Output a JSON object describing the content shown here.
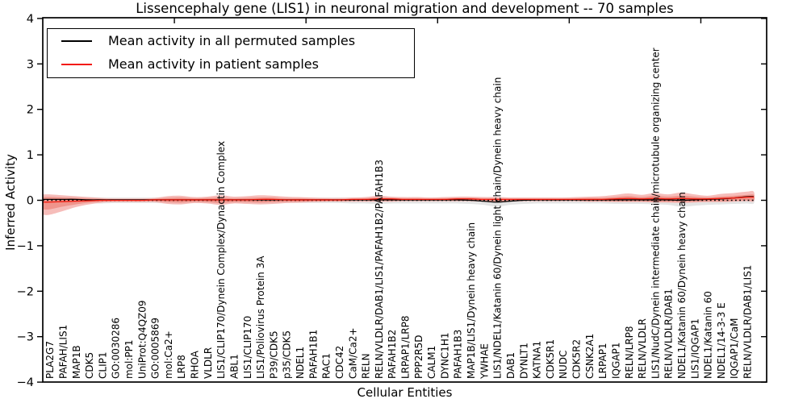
{
  "colors": {
    "black_line": "#000000",
    "red_line": "#f21a0e",
    "gray_band": "#e4e4e4",
    "red_band_outer": "#f5b2ae",
    "red_band_inner": "#ee8d84",
    "spine": "#000000"
  },
  "legend": {
    "items": [
      {
        "label": "Mean activity in all permuted samples",
        "color": "#000000"
      },
      {
        "label": "Mean activity in patient samples",
        "color": "#f21a0e"
      }
    ]
  },
  "chart_data": {
    "type": "line",
    "title": "Lissencephaly gene (LIS1) in neuronal migration and development -- 70 samples",
    "xlabel": "Cellular Entities",
    "ylabel": "Inferred Activity",
    "ylim": [
      -4,
      4
    ],
    "yticks": [
      "4",
      "3",
      "2",
      "1",
      "0",
      "−1",
      "−2",
      "−3",
      "−4"
    ],
    "ytick_values": [
      4,
      3,
      2,
      1,
      0,
      -1,
      -2,
      -3,
      -4
    ],
    "xlim": [
      0,
      55
    ],
    "xticks_top_values": [
      10,
      20,
      30,
      40,
      50
    ],
    "grid": false,
    "legend_position": "upper left",
    "zero_line": {
      "style": "dotted",
      "color": "#000000",
      "y": 0
    },
    "categories": [
      "PLA2G7",
      "PAFAH/LIS1",
      "MAP1B",
      "CDK5",
      "CLIP1",
      "GO:0030286",
      "mol:PP1",
      "UniProt:Q4QZ09",
      "GO:0005869",
      "mol:Ca2+",
      "LRP8",
      "RHOA",
      "VLDLR",
      "LIS1/CLIP170/Dynein Complex/Dynactin Complex",
      "ABL1",
      "LIS1/CLIP170",
      "LIS1/Poliovirus Protein 3A",
      "P39/CDK5",
      "p35/CDK5",
      "NDEL1",
      "PAFAH1B1",
      "RAC1",
      "CDC42",
      "CaM/Ca2+",
      "RELN",
      "RELN/VLDLR/DAB1/LIS1/PAFAH1B2/PAFAH1B3",
      "PAFAH1B2",
      "LRPAP1/LRP8",
      "PPP2R5D",
      "CALM1",
      "DYNC1H1",
      "PAFAH1B3",
      "MAP1B/LIS1/Dynein heavy chain",
      "YWHAE",
      "LIS1/NDEL1/Katanin 60/Dynein light chain/Dynein heavy chain",
      "DAB1",
      "DYNLT1",
      "KATNA1",
      "CDK5R1",
      "NUDC",
      "CDK5R2",
      "CSNK2A1",
      "LRPAP1",
      "IQGAP1",
      "RELN/LRP8",
      "RELN/VLDLR",
      "LIS1/NudC/Dynein intermediate chain/microtubule organizing center",
      "RELN/VLDLR/DAB1",
      "NDEL1/Katanin 60/Dynein heavy chain",
      "LIS1/IQGAP1",
      "NDEL1/Katanin 60",
      "NDEL1/14-3-3 E",
      "IQGAP1/CaM",
      "RELN/VLDLR/DAB1/LIS1"
    ],
    "series": [
      {
        "name": "Mean activity in all permuted samples",
        "color": "#000000",
        "values": [
          0.02,
          0.02,
          0.02,
          0.01,
          0.01,
          0.01,
          0.01,
          0.01,
          0.01,
          0.01,
          0.01,
          0.01,
          0.01,
          0.01,
          0.01,
          0.01,
          0.01,
          0.01,
          0.01,
          0.01,
          0.01,
          0.01,
          0.01,
          0.01,
          0.01,
          0.01,
          0.01,
          0.01,
          0.01,
          0.01,
          0.01,
          0.01,
          0.0,
          -0.02,
          -0.04,
          -0.02,
          0.0,
          0.01,
          0.01,
          0.01,
          0.01,
          0.01,
          0.01,
          0.01,
          0.01,
          0.01,
          0.01,
          0.01,
          0.0,
          0.01,
          0.02,
          0.03,
          0.05,
          0.08
        ]
      },
      {
        "name": "Mean activity in patient samples",
        "color": "#f21a0e",
        "values": [
          -0.04,
          -0.03,
          -0.02,
          -0.01,
          0.0,
          0.0,
          0.0,
          0.0,
          0.01,
          0.01,
          0.01,
          0.01,
          0.01,
          0.01,
          0.01,
          0.01,
          0.02,
          0.02,
          0.01,
          0.01,
          0.01,
          0.01,
          0.01,
          0.02,
          0.02,
          0.03,
          0.03,
          0.02,
          0.02,
          0.02,
          0.02,
          0.03,
          0.03,
          0.02,
          0.02,
          0.02,
          0.02,
          0.02,
          0.02,
          0.02,
          0.02,
          0.02,
          0.02,
          0.03,
          0.04,
          0.03,
          0.04,
          0.03,
          0.04,
          0.03,
          0.03,
          0.04,
          0.05,
          0.07
        ]
      }
    ],
    "bands": [
      {
        "name": "permuted samples spread",
        "color": "#e4e4e4",
        "upper": [
          0.09,
          0.08,
          0.07,
          0.07,
          0.06,
          0.06,
          0.06,
          0.06,
          0.06,
          0.07,
          0.07,
          0.06,
          0.06,
          0.07,
          0.06,
          0.06,
          0.07,
          0.07,
          0.06,
          0.06,
          0.06,
          0.06,
          0.06,
          0.06,
          0.06,
          0.07,
          0.06,
          0.06,
          0.06,
          0.06,
          0.06,
          0.06,
          0.06,
          0.07,
          0.07,
          0.06,
          0.06,
          0.06,
          0.06,
          0.06,
          0.06,
          0.06,
          0.06,
          0.07,
          0.07,
          0.07,
          0.07,
          0.07,
          0.08,
          0.08,
          0.08,
          0.08,
          0.08,
          0.09
        ],
        "lower": [
          -0.1,
          -0.09,
          -0.08,
          -0.07,
          -0.07,
          -0.06,
          -0.06,
          -0.06,
          -0.06,
          -0.07,
          -0.07,
          -0.06,
          -0.06,
          -0.07,
          -0.06,
          -0.06,
          -0.07,
          -0.07,
          -0.06,
          -0.06,
          -0.06,
          -0.06,
          -0.06,
          -0.07,
          -0.07,
          -0.08,
          -0.07,
          -0.07,
          -0.07,
          -0.07,
          -0.07,
          -0.07,
          -0.08,
          -0.1,
          -0.14,
          -0.1,
          -0.08,
          -0.07,
          -0.07,
          -0.07,
          -0.07,
          -0.07,
          -0.07,
          -0.08,
          -0.08,
          -0.08,
          -0.09,
          -0.1,
          -0.14,
          -0.12,
          -0.1,
          -0.09,
          -0.08,
          -0.07
        ]
      },
      {
        "name": "patient samples spread (outer)",
        "color": "#f5b2ae",
        "upper": [
          0.13,
          0.11,
          0.09,
          0.07,
          0.05,
          0.04,
          0.04,
          0.04,
          0.05,
          0.09,
          0.1,
          0.07,
          0.08,
          0.11,
          0.08,
          0.09,
          0.11,
          0.1,
          0.08,
          0.07,
          0.06,
          0.05,
          0.05,
          0.06,
          0.07,
          0.1,
          0.08,
          0.07,
          0.07,
          0.06,
          0.07,
          0.08,
          0.08,
          0.07,
          0.07,
          0.06,
          0.06,
          0.06,
          0.06,
          0.06,
          0.07,
          0.08,
          0.09,
          0.12,
          0.15,
          0.12,
          0.16,
          0.13,
          0.17,
          0.13,
          0.1,
          0.14,
          0.16,
          0.19
        ],
        "lower": [
          -0.32,
          -0.24,
          -0.15,
          -0.09,
          -0.05,
          -0.04,
          -0.04,
          -0.04,
          -0.04,
          -0.08,
          -0.09,
          -0.06,
          -0.07,
          -0.1,
          -0.07,
          -0.08,
          -0.09,
          -0.08,
          -0.06,
          -0.05,
          -0.04,
          -0.03,
          -0.03,
          -0.03,
          -0.03,
          -0.03,
          -0.03,
          -0.02,
          -0.02,
          -0.02,
          -0.02,
          -0.02,
          -0.02,
          -0.03,
          -0.04,
          -0.03,
          -0.02,
          -0.02,
          -0.02,
          -0.02,
          -0.02,
          -0.03,
          -0.03,
          -0.04,
          -0.04,
          -0.04,
          -0.05,
          -0.05,
          -0.06,
          -0.05,
          -0.04,
          -0.04,
          -0.03,
          -0.02
        ]
      },
      {
        "name": "patient samples spread (inner)",
        "color": "#ee8d84",
        "upper": [
          0.07,
          0.06,
          0.05,
          0.04,
          0.03,
          0.02,
          0.02,
          0.02,
          0.03,
          0.05,
          0.06,
          0.04,
          0.05,
          0.06,
          0.04,
          0.05,
          0.06,
          0.06,
          0.04,
          0.04,
          0.03,
          0.03,
          0.02,
          0.03,
          0.04,
          0.06,
          0.05,
          0.04,
          0.04,
          0.03,
          0.04,
          0.05,
          0.05,
          0.04,
          0.04,
          0.03,
          0.03,
          0.03,
          0.03,
          0.03,
          0.04,
          0.05,
          0.05,
          0.07,
          0.09,
          0.07,
          0.1,
          0.08,
          0.1,
          0.08,
          0.06,
          0.08,
          0.1,
          0.12
        ],
        "lower": [
          -0.2,
          -0.14,
          -0.09,
          -0.05,
          -0.03,
          -0.02,
          -0.02,
          -0.02,
          -0.02,
          -0.04,
          -0.05,
          -0.03,
          -0.04,
          -0.06,
          -0.04,
          -0.04,
          -0.05,
          -0.04,
          -0.03,
          -0.03,
          -0.02,
          -0.02,
          -0.02,
          -0.01,
          -0.01,
          -0.01,
          -0.01,
          -0.01,
          -0.01,
          -0.01,
          -0.01,
          -0.01,
          -0.01,
          -0.02,
          -0.02,
          -0.02,
          -0.01,
          -0.01,
          -0.01,
          -0.01,
          -0.01,
          -0.02,
          -0.02,
          -0.02,
          -0.02,
          -0.02,
          -0.03,
          -0.03,
          -0.03,
          -0.03,
          -0.02,
          -0.02,
          -0.01,
          0.0
        ]
      }
    ]
  }
}
